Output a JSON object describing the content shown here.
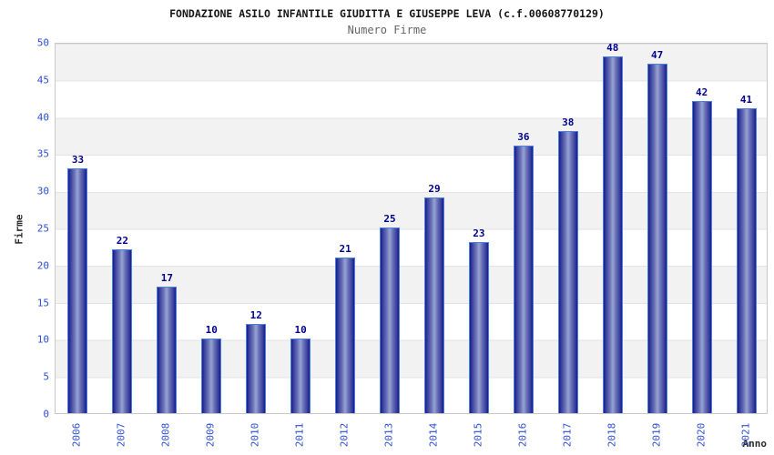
{
  "header": {
    "title": "FONDAZIONE ASILO INFANTILE GIUDITTA E GIUSEPPE LEVA (c.f.00608770129)",
    "subtitle": "Numero Firme"
  },
  "chart_data": {
    "type": "bar",
    "title": "FONDAZIONE ASILO INFANTILE GIUDITTA E GIUSEPPE LEVA (c.f.00608770129)",
    "subtitle": "Numero Firme",
    "categories": [
      "2006",
      "2007",
      "2008",
      "2009",
      "2010",
      "2011",
      "2012",
      "2013",
      "2014",
      "2015",
      "2016",
      "2017",
      "2018",
      "2019",
      "2020",
      "2021"
    ],
    "values": [
      33,
      22,
      17,
      10,
      12,
      10,
      21,
      25,
      29,
      23,
      36,
      38,
      48,
      47,
      42,
      41
    ],
    "xlabel": "Anno",
    "ylabel": "Firme",
    "ylim": [
      0,
      50
    ],
    "ytick_step": 5,
    "grid": "alternating-horizontal-bands-per-5-units",
    "legend": "none",
    "bar_value_labels_shown": true,
    "colors": {
      "band_gray": "#f2f2f2",
      "grid_line": "#e3e3e3",
      "plot_border": "#c9c9c9",
      "tick_label_blue": "#2d4fd4",
      "bar_value_navy": "#00008b",
      "bar_dark": "#1b1b8a",
      "bar_mid": "#3d44a0",
      "bar_light_center": "#9aa2d2",
      "bar_outline_lightblue": "#4b7fe0",
      "title_color": "#161616",
      "subtitle_color": "#666666",
      "axis_title_color": "#2a2a2a",
      "background": "#ffffff"
    }
  }
}
